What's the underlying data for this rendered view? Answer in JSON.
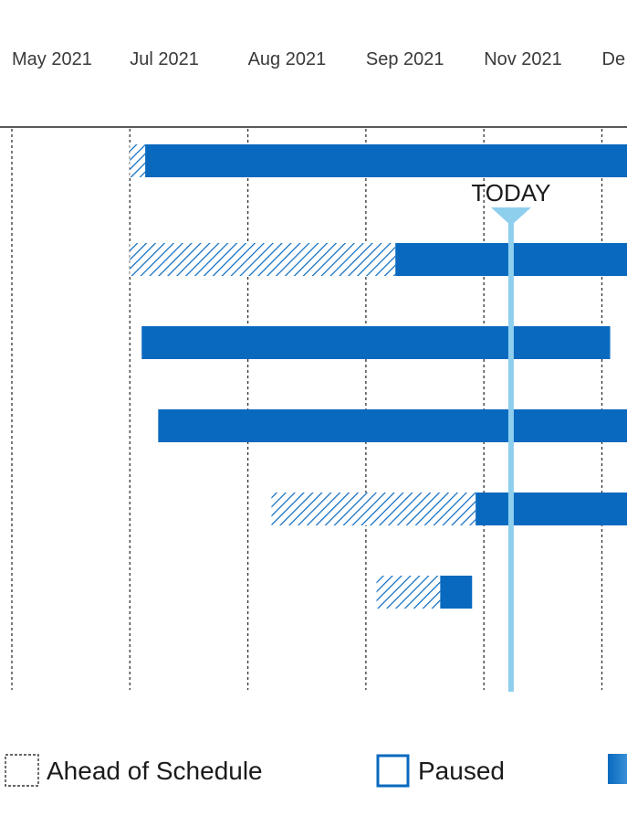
{
  "chart_data": {
    "type": "gantt",
    "x_axis_ticks": [
      "May 2021",
      "Jul 2021",
      "Aug 2021",
      "Sep 2021",
      "Nov 2021",
      "De"
    ],
    "today_marker": {
      "label": "TODAY",
      "month_index": 4.23
    },
    "bars": [
      {
        "ahead_start": 1.0,
        "actual_start": 1.13,
        "end": 6.3
      },
      {
        "ahead_start": 1.0,
        "actual_start": 3.25,
        "end": 6.3
      },
      {
        "ahead_start": null,
        "actual_start": 1.1,
        "end": 5.07
      },
      {
        "ahead_start": null,
        "actual_start": 1.24,
        "end": 6.3
      },
      {
        "ahead_start": 2.2,
        "actual_start": 3.93,
        "end": 6.3
      },
      {
        "ahead_start": 3.09,
        "actual_start": 3.63,
        "end": 3.9
      }
    ],
    "legend": [
      {
        "label": "Ahead of Schedule",
        "style": "dashed-outline"
      },
      {
        "label": "Paused",
        "style": "blue-outline"
      },
      {
        "label": "",
        "style": "blue-gradient"
      }
    ]
  },
  "colors": {
    "bar": "#0869bf",
    "hatch": "#0869bf",
    "today_line": "#8fcfee",
    "axis": "#222222",
    "gridline": "#333333"
  }
}
